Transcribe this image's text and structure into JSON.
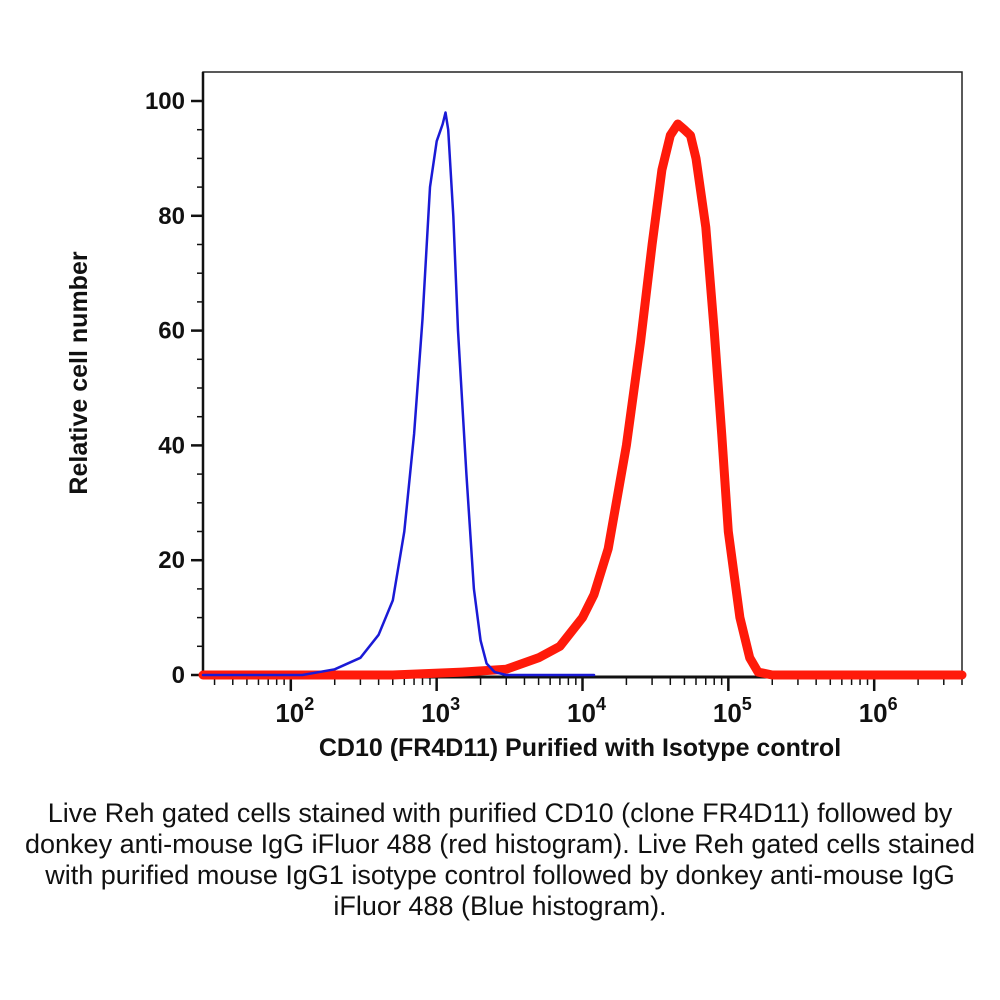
{
  "chart_data": {
    "type": "line",
    "title": "",
    "xlabel": "CD10 (FR4D11) Purified with Isotype control",
    "ylabel": "Relative cell number",
    "x_scale": "log",
    "xlim": [
      25,
      4000000
    ],
    "ylim": [
      0,
      100
    ],
    "yticks": [
      0,
      20,
      40,
      60,
      80,
      100
    ],
    "ytick_labels": [
      "0",
      "20",
      "40",
      "60",
      "80",
      "100"
    ],
    "xticks": [
      100,
      1000,
      10000,
      100000,
      1000000
    ],
    "xtick_labels": [
      {
        "base": "10",
        "exp": "2"
      },
      {
        "base": "10",
        "exp": "3"
      },
      {
        "base": "10",
        "exp": "4"
      },
      {
        "base": "10",
        "exp": "5"
      },
      {
        "base": "10",
        "exp": "6"
      }
    ],
    "grid": false,
    "legend": "none",
    "series": [
      {
        "color": "#1a1ad6",
        "x": [
          25,
          120,
          200,
          300,
          400,
          500,
          600,
          700,
          800,
          900,
          1000,
          1100,
          1150,
          1200,
          1300,
          1400,
          1600,
          1800,
          2000,
          2200,
          2500,
          3000,
          4000,
          6000,
          10000,
          12000
        ],
        "y": [
          0,
          0,
          1,
          3,
          7,
          13,
          25,
          42,
          62,
          85,
          93,
          96,
          98,
          95,
          80,
          60,
          35,
          15,
          6,
          2,
          0.5,
          0,
          0,
          0,
          0,
          0
        ]
      },
      {
        "color": "#ff1a0a",
        "x": [
          25,
          500,
          1500,
          3000,
          5000,
          7000,
          10000,
          12000,
          15000,
          20000,
          25000,
          30000,
          35000,
          40000,
          45000,
          50000,
          55000,
          60000,
          70000,
          80000,
          90000,
          100000,
          120000,
          140000,
          160000,
          200000,
          4000000
        ],
        "y": [
          0,
          0,
          0.5,
          1,
          3,
          5,
          10,
          14,
          22,
          40,
          58,
          75,
          88,
          94,
          96,
          95,
          94,
          90,
          78,
          60,
          42,
          25,
          10,
          3,
          0.5,
          0,
          0
        ]
      }
    ]
  },
  "caption": "Live Reh gated cells stained with purified CD10 (clone FR4D11) followed by donkey anti-mouse IgG iFluor 488 (red histogram). Live Reh gated cells stained with purified mouse IgG1 isotype control followed by donkey anti-mouse IgG iFluor 488 (Blue histogram)."
}
